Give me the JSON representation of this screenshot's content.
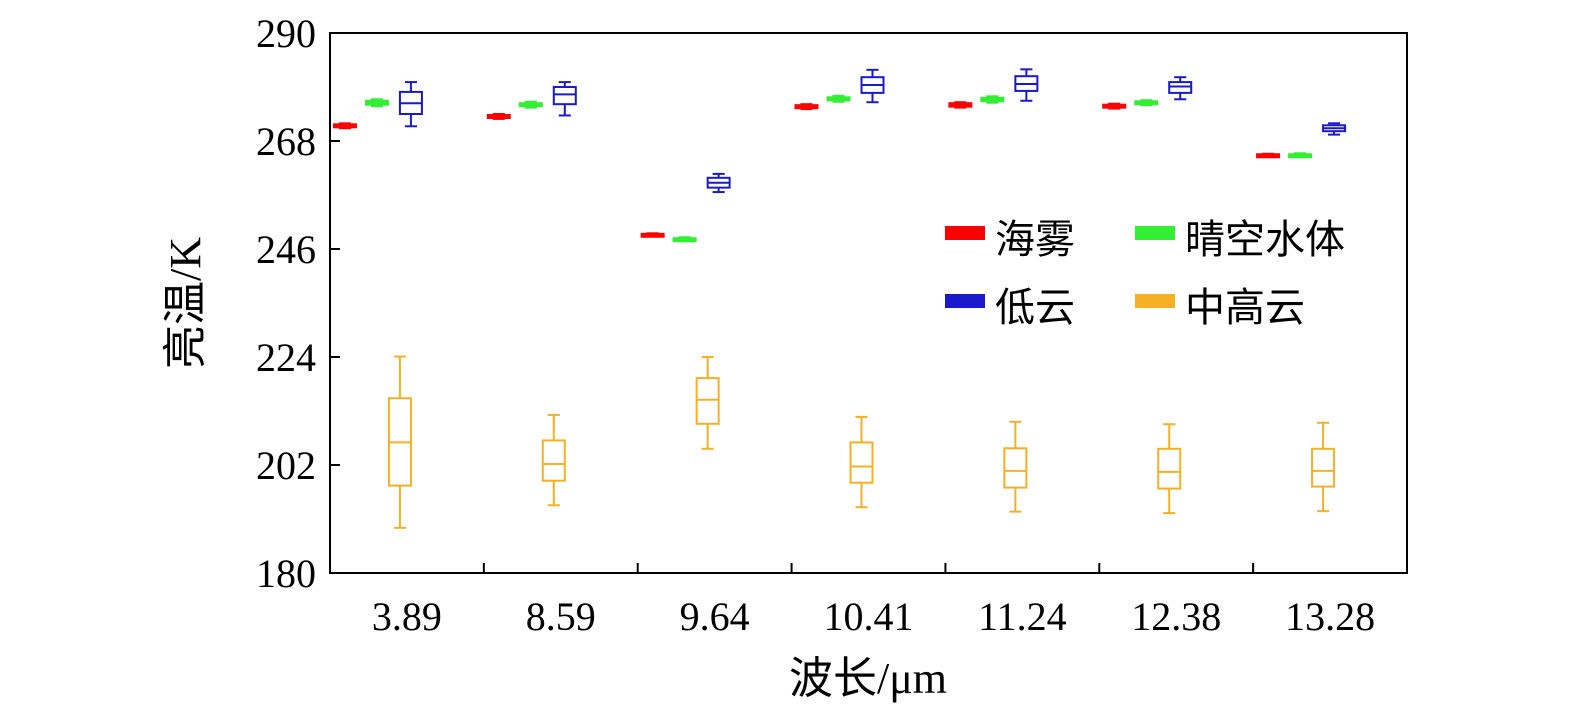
{
  "chart_data": {
    "type": "box",
    "xlabel": "波长/μm",
    "ylabel": "亮温/K",
    "ylim": [
      180,
      290
    ],
    "yticks": [
      180,
      202,
      224,
      246,
      268,
      290
    ],
    "grid": false,
    "legend_position": "right-middle",
    "categories": [
      "3.89",
      "8.59",
      "9.64",
      "10.41",
      "11.24",
      "12.38",
      "13.28"
    ],
    "series": [
      {
        "name": "海雾",
        "color": "#ff0000",
        "boxes": [
          {
            "min": 270.6,
            "q1": 270.8,
            "median": 271.1,
            "q3": 271.4,
            "max": 271.6
          },
          {
            "min": 272.5,
            "q1": 272.7,
            "median": 273.0,
            "q3": 273.3,
            "max": 273.5
          },
          {
            "min": 248.8,
            "q1": 248.9,
            "median": 249.0,
            "q3": 249.1,
            "max": 249.2
          },
          {
            "min": 274.5,
            "q1": 274.7,
            "median": 275.0,
            "q3": 275.3,
            "max": 275.5
          },
          {
            "min": 274.8,
            "q1": 275.0,
            "median": 275.4,
            "q3": 275.7,
            "max": 275.9
          },
          {
            "min": 274.6,
            "q1": 274.8,
            "median": 275.1,
            "q3": 275.4,
            "max": 275.6
          },
          {
            "min": 264.8,
            "q1": 264.9,
            "median": 265.1,
            "q3": 265.3,
            "max": 265.4
          }
        ]
      },
      {
        "name": "晴空水体",
        "color": "#33ee33",
        "boxes": [
          {
            "min": 275.1,
            "q1": 275.4,
            "median": 275.8,
            "q3": 276.2,
            "max": 276.5
          },
          {
            "min": 274.8,
            "q1": 275.1,
            "median": 275.4,
            "q3": 275.7,
            "max": 276.0
          },
          {
            "min": 247.6,
            "q1": 247.8,
            "median": 248.0,
            "q3": 248.2,
            "max": 248.4
          },
          {
            "min": 276.0,
            "q1": 276.3,
            "median": 276.6,
            "q3": 276.9,
            "max": 277.2
          },
          {
            "min": 275.8,
            "q1": 276.1,
            "median": 276.4,
            "q3": 276.8,
            "max": 277.1
          },
          {
            "min": 275.3,
            "q1": 275.5,
            "median": 275.8,
            "q3": 276.1,
            "max": 276.3
          },
          {
            "min": 264.7,
            "q1": 264.9,
            "median": 265.1,
            "q3": 265.3,
            "max": 265.5
          }
        ]
      },
      {
        "name": "低云",
        "color": "#1a1acc",
        "boxes": [
          {
            "min": 271.0,
            "q1": 273.5,
            "median": 275.7,
            "q3": 278.0,
            "max": 280.0
          },
          {
            "min": 273.2,
            "q1": 275.5,
            "median": 277.5,
            "q3": 279.0,
            "max": 280.0
          },
          {
            "min": 257.6,
            "q1": 258.5,
            "median": 259.5,
            "q3": 260.5,
            "max": 261.3
          },
          {
            "min": 275.9,
            "q1": 277.8,
            "median": 279.4,
            "q3": 281.0,
            "max": 282.5
          },
          {
            "min": 276.2,
            "q1": 278.2,
            "median": 279.6,
            "q3": 281.2,
            "max": 282.6
          },
          {
            "min": 276.5,
            "q1": 277.8,
            "median": 279.1,
            "q3": 280.0,
            "max": 281.0
          },
          {
            "min": 269.3,
            "q1": 270.0,
            "median": 270.6,
            "q3": 271.2,
            "max": 271.6
          }
        ]
      },
      {
        "name": "中高云",
        "color": "#f5b025",
        "boxes": [
          {
            "min": 189.2,
            "q1": 197.8,
            "median": 206.6,
            "q3": 215.6,
            "max": 224.1
          },
          {
            "min": 193.8,
            "q1": 198.8,
            "median": 202.2,
            "q3": 207.0,
            "max": 212.2
          },
          {
            "min": 205.3,
            "q1": 210.4,
            "median": 215.3,
            "q3": 219.7,
            "max": 224.0
          },
          {
            "min": 193.4,
            "q1": 198.4,
            "median": 201.7,
            "q3": 206.6,
            "max": 211.8
          },
          {
            "min": 192.5,
            "q1": 197.4,
            "median": 200.8,
            "q3": 205.4,
            "max": 210.8
          },
          {
            "min": 192.2,
            "q1": 197.2,
            "median": 200.6,
            "q3": 205.3,
            "max": 210.3
          },
          {
            "min": 192.6,
            "q1": 197.6,
            "median": 200.8,
            "q3": 205.3,
            "max": 210.6
          }
        ]
      }
    ]
  }
}
